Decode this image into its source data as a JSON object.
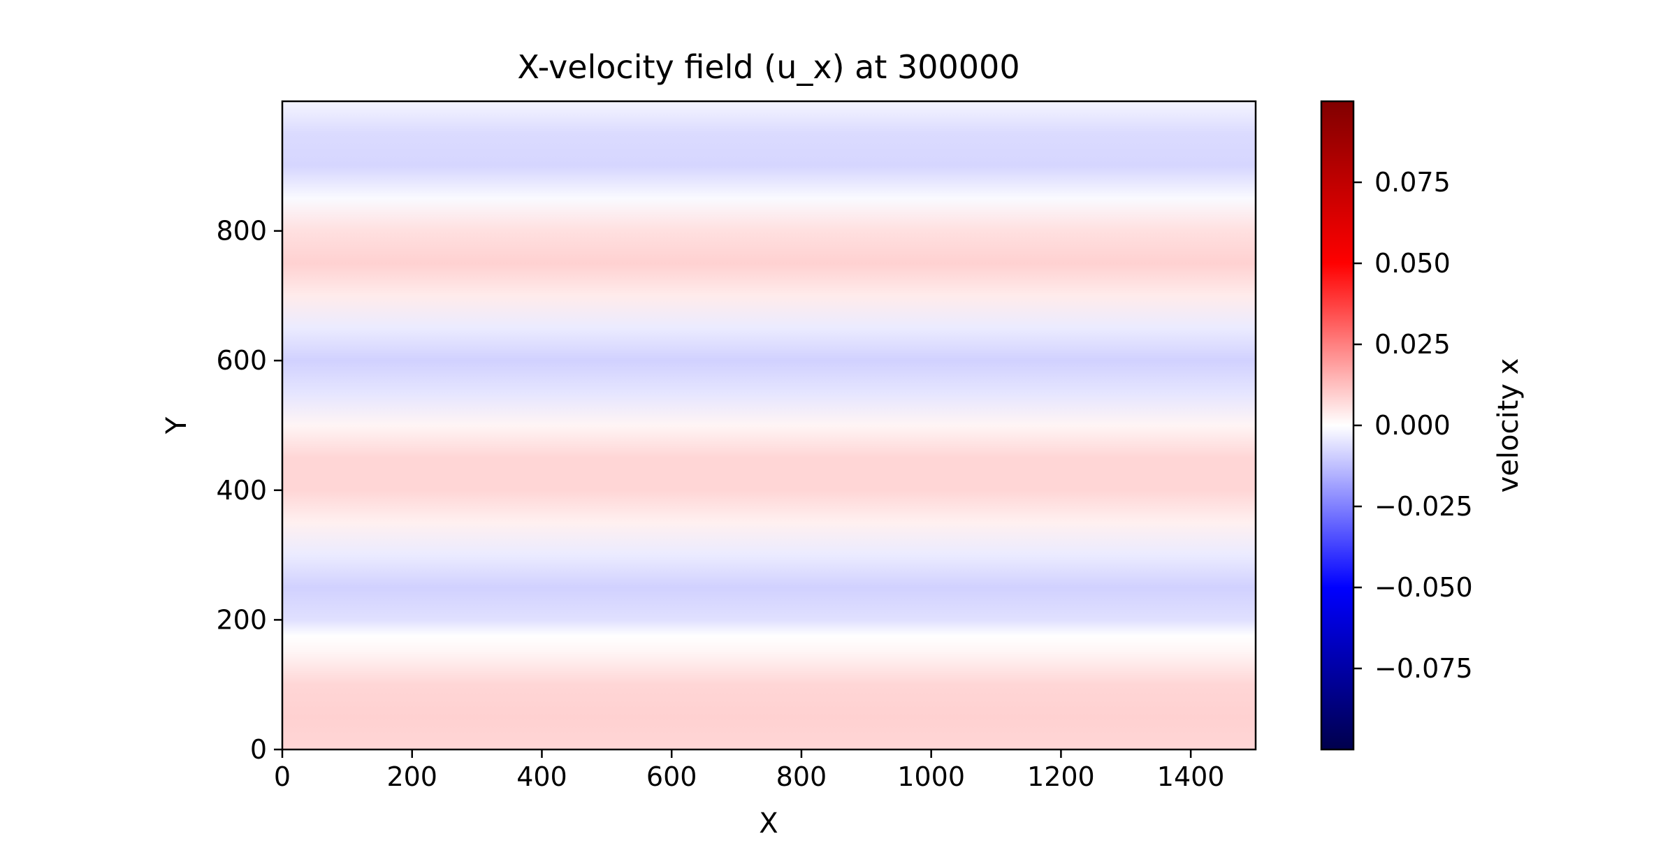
{
  "chart_data": {
    "type": "heatmap",
    "title": "X-velocity field (u_x) at 300000",
    "xlabel": "X",
    "ylabel": "Y",
    "xlim": [
      0,
      1500
    ],
    "ylim": [
      0,
      1000
    ],
    "x_ticks": [
      {
        "value": 0,
        "label": "0"
      },
      {
        "value": 200,
        "label": "200"
      },
      {
        "value": 400,
        "label": "400"
      },
      {
        "value": 600,
        "label": "600"
      },
      {
        "value": 800,
        "label": "800"
      },
      {
        "value": 1000,
        "label": "1000"
      },
      {
        "value": 1200,
        "label": "1200"
      },
      {
        "value": 1400,
        "label": "1400"
      }
    ],
    "y_ticks": [
      {
        "value": 0,
        "label": "0"
      },
      {
        "value": 200,
        "label": "200"
      },
      {
        "value": 400,
        "label": "400"
      },
      {
        "value": 600,
        "label": "600"
      },
      {
        "value": 800,
        "label": "800"
      }
    ],
    "colormap": "seismic",
    "colorbar": {
      "label": "velocity x",
      "range": [
        -0.1,
        0.1
      ],
      "ticks": [
        {
          "value": 0.075,
          "label": "0.075"
        },
        {
          "value": 0.05,
          "label": "0.050"
        },
        {
          "value": 0.025,
          "label": "0.025"
        },
        {
          "value": 0.0,
          "label": "0.000"
        },
        {
          "value": -0.025,
          "label": "−0.025"
        },
        {
          "value": -0.05,
          "label": "−0.050"
        },
        {
          "value": -0.075,
          "label": "−0.075"
        }
      ]
    },
    "field_profile": {
      "description_axis": "u_x varies with Y only (horizontal bands, uniform along X)",
      "y": [
        0,
        50,
        100,
        150,
        175,
        200,
        250,
        300,
        350,
        400,
        450,
        500,
        550,
        600,
        650,
        700,
        750,
        800,
        850,
        900,
        950,
        1000
      ],
      "u_x": [
        0.008,
        0.009,
        0.008,
        0.002,
        0.0,
        -0.006,
        -0.009,
        -0.004,
        0.003,
        0.008,
        0.008,
        0.002,
        -0.005,
        -0.009,
        -0.004,
        0.004,
        0.009,
        0.006,
        -0.001,
        -0.008,
        -0.007,
        -0.002
      ]
    }
  }
}
